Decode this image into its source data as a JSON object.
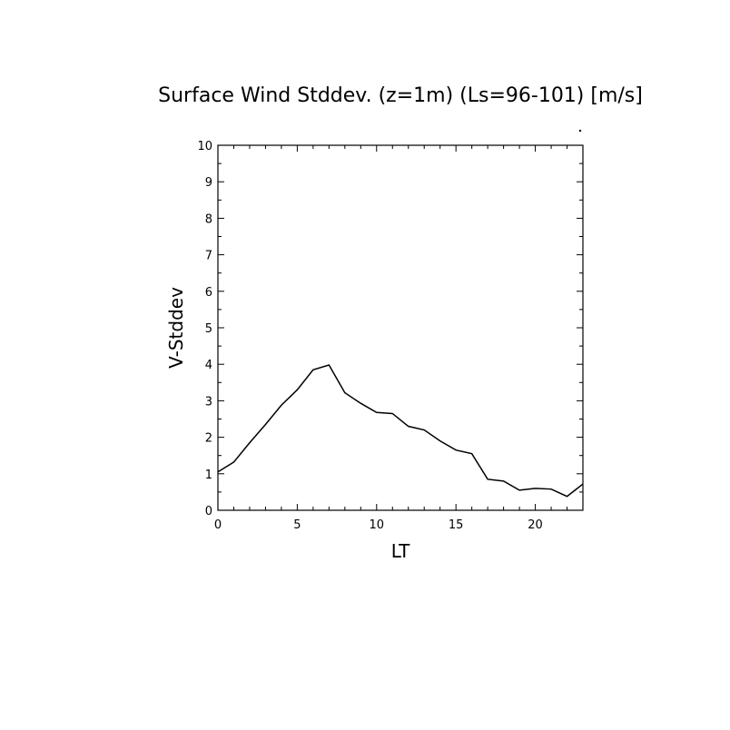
{
  "chart_data": {
    "type": "line",
    "title": "Surface Wind Stddev. (z=1m) (Ls=96-101) [m/s]",
    "xlabel": "LT",
    "ylabel": "V-Stddev",
    "xlim": [
      0,
      23
    ],
    "ylim": [
      0,
      10
    ],
    "x_ticks": [
      0,
      5,
      10,
      15,
      20
    ],
    "y_ticks": [
      0,
      1,
      2,
      3,
      4,
      5,
      6,
      7,
      8,
      9,
      10
    ],
    "grid": false,
    "series": [
      {
        "x": [
          0,
          1,
          2,
          3,
          4,
          5,
          6,
          7,
          8,
          9,
          10,
          11,
          12,
          13,
          14,
          15,
          16,
          17,
          18,
          19,
          20,
          21,
          22,
          23
        ],
        "values": [
          1.05,
          1.32,
          1.85,
          2.35,
          2.88,
          3.3,
          3.85,
          3.98,
          3.22,
          2.93,
          2.68,
          2.65,
          2.3,
          2.2,
          1.9,
          1.65,
          1.55,
          0.85,
          0.8,
          0.55,
          0.6,
          0.58,
          0.38,
          0.72
        ]
      }
    ],
    "line_color": "#000000"
  }
}
